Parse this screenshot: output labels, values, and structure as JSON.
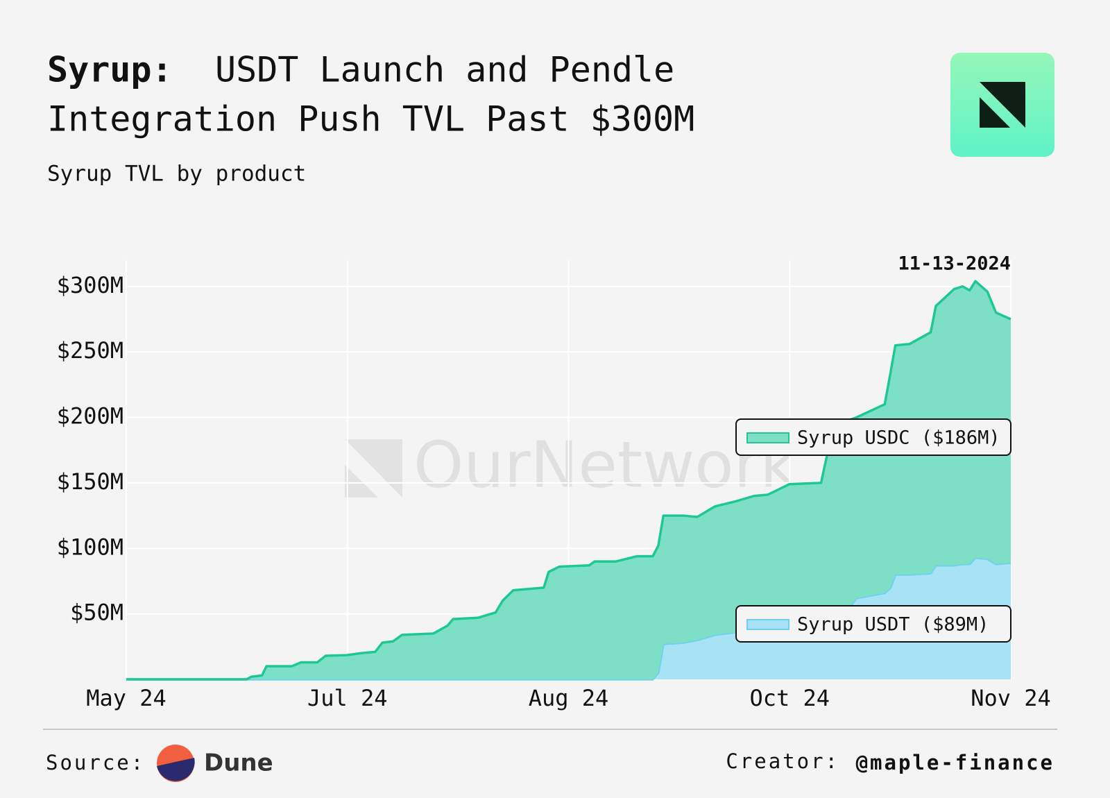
{
  "header": {
    "title_bold": "Syrup:",
    "title_rest_1": "USDT Launch and Pendle",
    "title_rest_2": "Integration Push TVL Past $300M",
    "subtitle": "Syrup TVL by product"
  },
  "chart_data": {
    "type": "area",
    "stacked": true,
    "annotation": "11-13-2024",
    "watermark": "OurNetwork",
    "x": [
      0,
      0.544,
      0.566,
      0.614,
      0.634,
      0.749,
      0.79,
      0.864,
      0.902,
      0.998,
      1.062,
      1.126,
      1.158,
      1.206,
      1.248,
      1.389,
      1.453,
      1.478,
      1.59,
      1.67,
      1.702,
      1.75,
      1.888,
      1.91,
      1.958,
      2.093,
      2.118,
      2.214,
      2.31,
      2.381,
      2.406,
      2.429,
      2.518,
      2.582,
      2.662,
      2.758,
      2.838,
      2.902,
      2.998,
      3.142,
      3.174,
      3.27,
      3.302,
      3.43,
      3.456,
      3.478,
      3.542,
      3.638,
      3.661,
      3.744,
      3.782,
      3.814,
      3.84,
      3.894,
      3.933,
      4
    ],
    "series": [
      {
        "name": "Syrup USDT ($89M)",
        "color": "#a8e2f5",
        "line_color": "#6fd0f3",
        "values": [
          0,
          0,
          0,
          0,
          0,
          0,
          0,
          0,
          0,
          0,
          0,
          0,
          0,
          0,
          0,
          0,
          0,
          0,
          0,
          0,
          0,
          0,
          0,
          0,
          0,
          0,
          0,
          0,
          0,
          0,
          5,
          27,
          28,
          30,
          34,
          36,
          38,
          40,
          43,
          45,
          48,
          55,
          62,
          66,
          70,
          80,
          80,
          81,
          87,
          87,
          88,
          88,
          93,
          92,
          88,
          89
        ]
      },
      {
        "name": "Syrup USDC ($186M)",
        "color": "#7de0c6",
        "line_color": "#1fc795",
        "values": [
          0,
          0,
          2,
          3,
          10,
          10,
          13,
          13,
          18,
          18.5,
          20,
          21,
          28,
          29,
          34,
          35,
          41,
          46,
          47,
          51,
          60,
          68,
          70,
          82,
          86,
          87,
          90,
          90,
          94,
          94,
          97,
          98,
          97,
          94,
          98,
          100,
          102,
          101,
          106,
          105,
          127,
          143,
          138,
          144,
          164,
          175,
          176,
          184,
          198,
          211,
          212,
          209,
          211,
          204,
          192,
          186
        ]
      }
    ],
    "xlim": [
      0,
      4
    ],
    "xticks": [
      {
        "value": 0,
        "label": "May 24"
      },
      {
        "value": 1,
        "label": "Jul 24"
      },
      {
        "value": 2,
        "label": "Aug 24"
      },
      {
        "value": 3,
        "label": "Oct 24"
      },
      {
        "value": 4,
        "label": "Nov 24"
      }
    ],
    "ylim": [
      0,
      320
    ],
    "yticks": [
      {
        "value": 50,
        "label": "$50M"
      },
      {
        "value": 100,
        "label": "$100M"
      },
      {
        "value": 150,
        "label": "$150M"
      },
      {
        "value": 200,
        "label": "$200M"
      },
      {
        "value": 250,
        "label": "$250M"
      },
      {
        "value": 300,
        "label": "$300M"
      }
    ],
    "grid": true
  },
  "footer": {
    "source_label": "Source:",
    "source_name": "Dune",
    "creator_label": "Creator:",
    "creator_handle": "@maple-finance"
  }
}
